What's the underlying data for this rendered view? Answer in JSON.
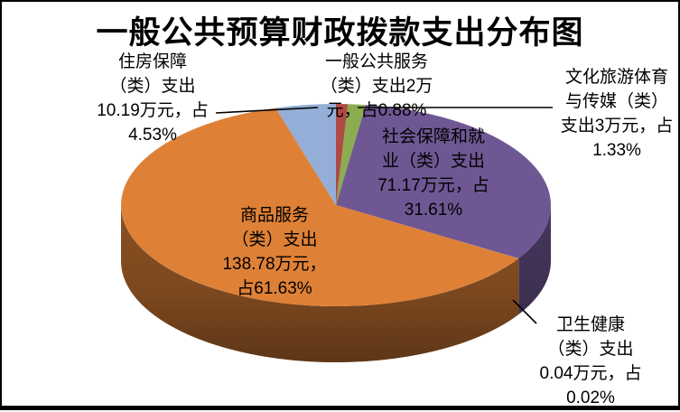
{
  "title": "一般公共预算财政拨款支出分布图",
  "labels": {
    "housing": "住房保障\n（类）支出\n10.19万元，占\n4.53%",
    "general_public_service": "一般公共服务\n（类）支出2万\n元，占0.88%",
    "culture_tourism": "文化旅游体育\n与传媒（类）\n支出3万元，占\n1.33%",
    "social_security": "社会保障和就\n业（类）支出\n71.17万元，占\n31.61%",
    "goods_services": "商品服务\n（类）支出\n138.78万元，\n占61.63%",
    "health": "卫生健康\n（类）支出\n0.04万元，占\n0.02%"
  },
  "chart_data": {
    "type": "pie",
    "style": "3d",
    "title": "一般公共预算财政拨款支出分布图",
    "unit": "万元",
    "start_angle_deg": 0,
    "direction": "clockwise",
    "legend": "none",
    "slices": [
      {
        "key": "general-public-service",
        "label": "一般公共服务（类）支出",
        "value": 2,
        "percent": "0.88%",
        "color": "#B04A47"
      },
      {
        "key": "culture-tourism-sports-media",
        "label": "文化旅游体育与传媒（类）支出",
        "value": 3,
        "percent": "1.33%",
        "color": "#8BAC4F"
      },
      {
        "key": "social-security-employment",
        "label": "社会保障和就业（类）支出",
        "value": 71.17,
        "percent": "31.61%",
        "color": "#6F5794"
      },
      {
        "key": "health",
        "label": "卫生健康（类）支出",
        "value": 0.04,
        "percent": "0.02%",
        "color": "#4BACC6"
      },
      {
        "key": "goods-services",
        "label": "商品服务（类）支出",
        "value": 138.78,
        "percent": "61.63%",
        "color": "#DE8137"
      },
      {
        "key": "housing-security",
        "label": "住房保障（类）支出",
        "value": 10.19,
        "percent": "4.53%",
        "color": "#94AED8"
      }
    ]
  }
}
